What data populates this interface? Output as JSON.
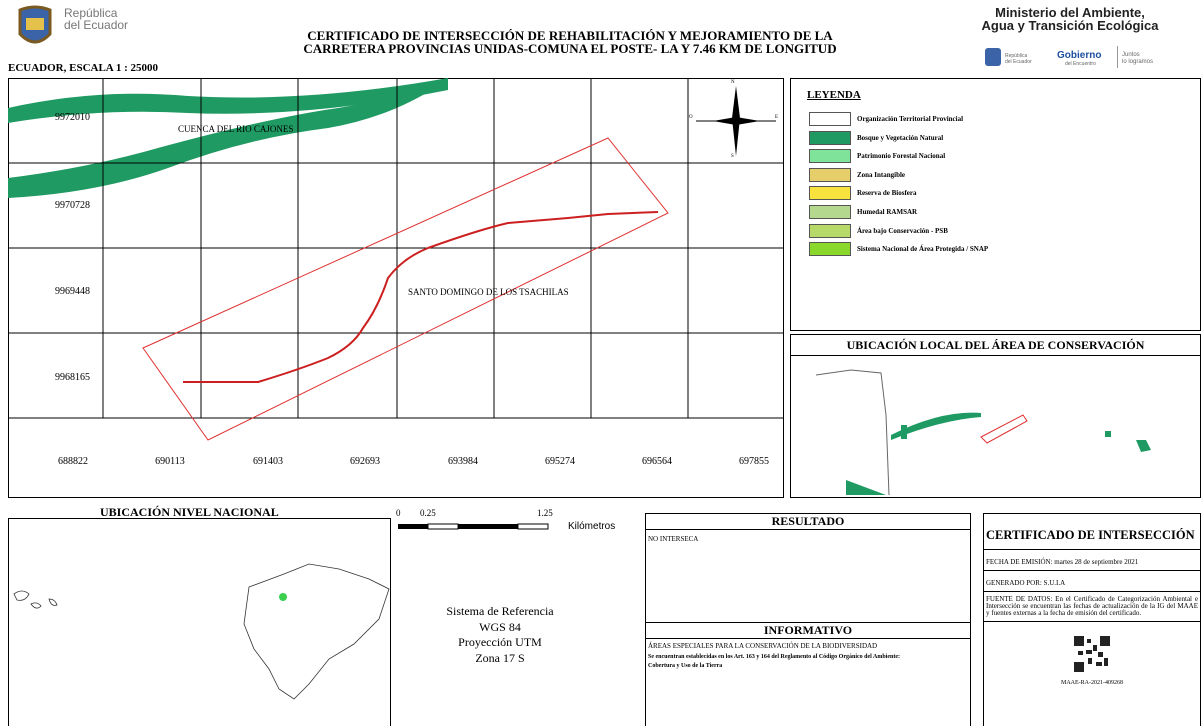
{
  "header": {
    "country_logo": [
      "República",
      "del Ecuador"
    ],
    "title": [
      "CERTIFICADO DE INTERSECCIÓN DE REHABILITACIÓN Y MEJORAMIENTO DE LA",
      "CARRETERA PROVINCIAS UNIDAS-COMUNA EL POSTE- LA Y 7.46 KM DE LONGITUD"
    ],
    "ministry": [
      "Ministerio del Ambiente,",
      "Agua y Transición Ecológica"
    ],
    "small_logos": [
      "República del Ecuador",
      "Gobierno",
      "del Encuentro",
      "Juntos",
      "lo logramos"
    ]
  },
  "map": {
    "scale": "ECUADOR, ESCALA 1 : 25000",
    "y_labels": [
      9972010,
      9970728,
      9969448,
      9968165
    ],
    "x_labels": [
      688822,
      690113,
      691403,
      692693,
      693984,
      695274,
      696564,
      697855
    ],
    "places": [
      "CUENCA DEL RIO CAJONES",
      "SANTO DOMINGO DE LOS TSACHILAS"
    ],
    "compass": [
      "N",
      "O",
      "E",
      "S"
    ]
  },
  "legend": {
    "title": "LEYENDA",
    "items": [
      {
        "label": "Organización Territorial Provincial",
        "color": "#ffffff"
      },
      {
        "label": "Bosque y Vegetación Natural",
        "color": "#1f9a62"
      },
      {
        "label": "Patrimonio Forestal Nacional",
        "color": "#7fe49a"
      },
      {
        "label": "Zona Intangible",
        "color": "#e6cf6a"
      },
      {
        "label": "Reserva de Biosfera",
        "color": "#f7e23e"
      },
      {
        "label": "Humedal RAMSAR",
        "color": "#b4d98e"
      },
      {
        "label": "Área bajo Conservación - PSB",
        "color": "#b6d96a"
      },
      {
        "label": "Sistema Nacional de Área Protegida / SNAP",
        "color": "#8ad82c"
      }
    ]
  },
  "local_location": {
    "title": "UBICACIÓN LOCAL DEL ÁREA DE CONSERVACIÓN"
  },
  "national_location": {
    "title": "UBICACIÓN NIVEL NACIONAL"
  },
  "scale_bar": {
    "labels": [
      "0",
      "0.25",
      "1.25"
    ],
    "unit": "Kilómetros"
  },
  "reference": [
    "Sistema de Referencia",
    "WGS 84",
    "Proyección UTM",
    "Zona 17 S"
  ],
  "result": {
    "title": "RESULTADO",
    "text": "NO INTERSECA"
  },
  "informative": {
    "title": "INFORMATIVO",
    "lines": [
      "ÁREAS ESPECIALES PARA LA CONSERVACIÓN DE LA BIODIVERSIDAD",
      "Se encuentran establecidas en los Art. 163 y 164 del Reglamento al Código Orgánico del Ambiente:",
      "Cobertura y Uso de la Tierra"
    ]
  },
  "certificate": {
    "title": "CERTIFICADO DE INTERSECCIÓN",
    "date": "FECHA DE EMISIÓN: martes 28 de septiembre 2021",
    "generated": "GENERADO POR: S.U.I.A",
    "source": "FUENTE DE DATOS: En el Certificado de Categorización Ambiental e Intersección se encuentran las fechas de actualización de la IG del MAAE y fuentes externas a la fecha de emisión del certificado.",
    "code": "MAAE-RA-2021-409268"
  }
}
